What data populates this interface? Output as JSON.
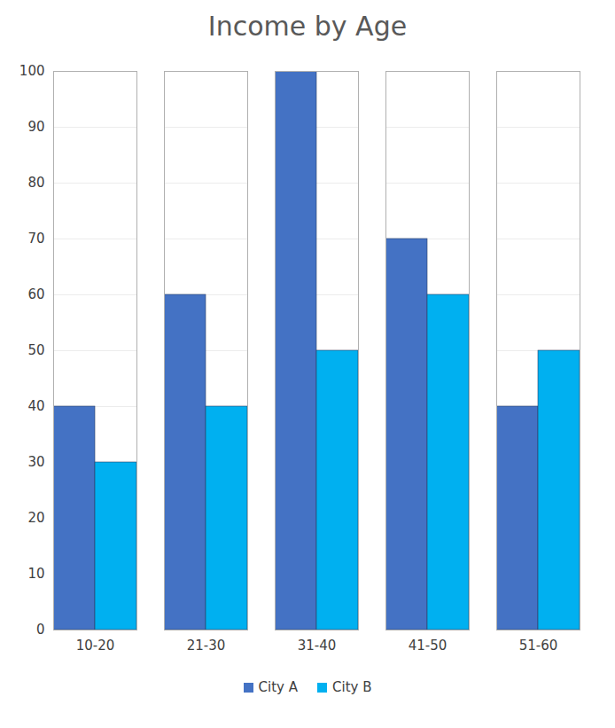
{
  "chart_data": {
    "type": "bar",
    "title": "Income by Age",
    "categories": [
      "10-20",
      "21-30",
      "31-40",
      "41-50",
      "51-60"
    ],
    "series": [
      {
        "name": "City A",
        "color": "#4472c4",
        "values": [
          40,
          60,
          100,
          70,
          40
        ]
      },
      {
        "name": "City B",
        "color": "#00b0f0",
        "values": [
          30,
          40,
          50,
          60,
          50
        ]
      }
    ],
    "ylim": [
      0,
      100
    ],
    "yticks": [
      0,
      10,
      20,
      30,
      40,
      50,
      60,
      70,
      80,
      90,
      100
    ],
    "grid": true,
    "legend": "bottom"
  }
}
